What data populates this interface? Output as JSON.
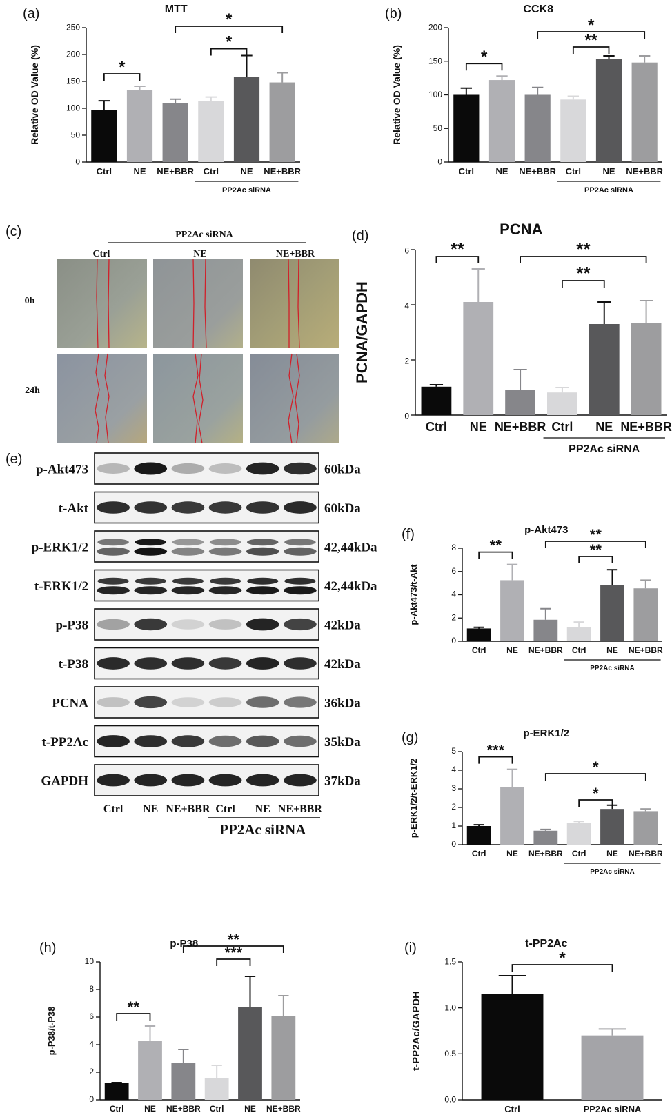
{
  "charts": {
    "a": {
      "panel_label": "(a)",
      "title": "MTT",
      "ylabel": "Relative OD Value (%)",
      "ylim": [
        0,
        250
      ],
      "yticks": [
        "0",
        "50",
        "100",
        "150",
        "200",
        "250"
      ],
      "categories": [
        "Ctrl",
        "NE",
        "NE+BBR",
        "Ctrl",
        "NE",
        "NE+BBR"
      ],
      "values": [
        97,
        134,
        109,
        113,
        158,
        148
      ],
      "errors": [
        17,
        7,
        8,
        8,
        40,
        18
      ],
      "colors": [
        "#0a0a0a",
        "#b0b0b4",
        "#86868a",
        "#d8d8da",
        "#58585a",
        "#9d9d9f"
      ],
      "group_label": "PP2Ac siRNA",
      "significance": [
        {
          "from": 0,
          "to": 1,
          "label": "*"
        },
        {
          "from": 3,
          "to": 4,
          "label": "*"
        },
        {
          "from": 2,
          "to": 5,
          "label": "*"
        }
      ]
    },
    "b": {
      "panel_label": "(b)",
      "title": "CCK8",
      "ylabel": "Relative OD Value (%)",
      "ylim": [
        0,
        200
      ],
      "yticks": [
        "0",
        "50",
        "100",
        "150",
        "200"
      ],
      "categories": [
        "Ctrl",
        "NE",
        "NE+BBR",
        "Ctrl",
        "NE",
        "NE+BBR"
      ],
      "values": [
        100,
        122,
        100,
        93,
        153,
        148
      ],
      "errors": [
        10,
        6,
        11,
        5,
        5,
        10
      ],
      "colors": [
        "#0a0a0a",
        "#b0b0b4",
        "#86868a",
        "#d8d8da",
        "#58585a",
        "#9d9d9f"
      ],
      "group_label": "PP2Ac siRNA",
      "significance": [
        {
          "from": 0,
          "to": 1,
          "label": "*"
        },
        {
          "from": 3,
          "to": 4,
          "label": "**"
        },
        {
          "from": 2,
          "to": 5,
          "label": "*"
        }
      ]
    },
    "d": {
      "panel_label": "(d)",
      "title": "PCNA",
      "ylabel": "PCNA/GAPDH",
      "ylim": [
        0,
        6
      ],
      "yticks": [
        "0",
        "2",
        "4",
        "6"
      ],
      "categories": [
        "Ctrl",
        "NE",
        "NE+BBR",
        "Ctrl",
        "NE",
        "NE+BBR"
      ],
      "values": [
        1.03,
        4.1,
        0.9,
        0.82,
        3.3,
        3.35
      ],
      "errors": [
        0.07,
        1.2,
        0.75,
        0.18,
        0.8,
        0.8
      ],
      "colors": [
        "#0a0a0a",
        "#b0b0b4",
        "#86868a",
        "#d8d8da",
        "#58585a",
        "#9d9d9f"
      ],
      "group_label": "PP2Ac siRNA",
      "significance": [
        {
          "from": 0,
          "to": 1,
          "label": "**"
        },
        {
          "from": 3,
          "to": 4,
          "label": "**"
        },
        {
          "from": 2,
          "to": 5,
          "label": "**"
        }
      ]
    },
    "f": {
      "panel_label": "(f)",
      "title": "p-Akt473",
      "ylabel": "p-Akt473/t-Akt",
      "ylim": [
        0,
        8
      ],
      "yticks": [
        "0",
        "2",
        "4",
        "6",
        "8"
      ],
      "categories": [
        "Ctrl",
        "NE",
        "NE+BBR",
        "Ctrl",
        "NE",
        "NE+BBR"
      ],
      "values": [
        1.1,
        5.25,
        1.85,
        1.2,
        4.85,
        4.55
      ],
      "errors": [
        0.1,
        1.35,
        0.95,
        0.45,
        1.3,
        0.7
      ],
      "colors": [
        "#0a0a0a",
        "#b0b0b4",
        "#86868a",
        "#d8d8da",
        "#58585a",
        "#9d9d9f"
      ],
      "group_label": "PP2Ac siRNA",
      "significance": [
        {
          "from": 0,
          "to": 1,
          "label": "**"
        },
        {
          "from": 3,
          "to": 4,
          "label": "**"
        },
        {
          "from": 2,
          "to": 5,
          "label": "**"
        }
      ]
    },
    "g": {
      "panel_label": "(g)",
      "title": "p-ERK1/2",
      "ylabel": "p-ERK1/2/t-ERK1/2",
      "ylim": [
        0,
        5
      ],
      "yticks": [
        "0",
        "1",
        "2",
        "3",
        "4",
        "5"
      ],
      "categories": [
        "Ctrl",
        "NE",
        "NE+BBR",
        "Ctrl",
        "NE",
        "NE+BBR"
      ],
      "values": [
        1.0,
        3.1,
        0.75,
        1.15,
        1.92,
        1.8
      ],
      "errors": [
        0.07,
        0.95,
        0.07,
        0.1,
        0.2,
        0.12
      ],
      "colors": [
        "#0a0a0a",
        "#b0b0b4",
        "#86868a",
        "#d8d8da",
        "#58585a",
        "#9d9d9f"
      ],
      "group_label": "PP2Ac siRNA",
      "significance": [
        {
          "from": 0,
          "to": 1,
          "label": "***"
        },
        {
          "from": 3,
          "to": 4,
          "label": "*"
        },
        {
          "from": 2,
          "to": 5,
          "label": "*"
        }
      ]
    },
    "h": {
      "panel_label": "(h)",
      "title": "p-P38",
      "ylabel": "p-P38/t-P38",
      "ylim": [
        0,
        10
      ],
      "yticks": [
        "0",
        "2",
        "4",
        "6",
        "8",
        "10"
      ],
      "categories": [
        "Ctrl",
        "NE",
        "NE+BBR",
        "Ctrl",
        "NE",
        "NE+BBR"
      ],
      "values": [
        1.2,
        4.3,
        2.7,
        1.55,
        6.7,
        6.1
      ],
      "errors": [
        0.05,
        1.05,
        0.95,
        0.95,
        2.25,
        1.45
      ],
      "colors": [
        "#0a0a0a",
        "#b0b0b4",
        "#86868a",
        "#d8d8da",
        "#58585a",
        "#9d9d9f"
      ],
      "group_label": "PP2Ac siRNA",
      "significance": [
        {
          "from": 0,
          "to": 1,
          "label": "**"
        },
        {
          "from": 3,
          "to": 4,
          "label": "***"
        },
        {
          "from": 2,
          "to": 5,
          "label": "**"
        }
      ]
    },
    "i": {
      "panel_label": "(i)",
      "title": "t-PP2Ac",
      "ylabel": "t-PP2Ac/GAPDH",
      "ylim": [
        0,
        1.5
      ],
      "yticks": [
        "0.0",
        "0.5",
        "1.0",
        "1.5"
      ],
      "categories": [
        "Ctrl",
        "PP2Ac siRNA"
      ],
      "values": [
        1.15,
        0.7
      ],
      "errors": [
        0.2,
        0.07
      ],
      "colors": [
        "#0a0a0a",
        "#a4a4a8"
      ],
      "group_label": "",
      "significance": [
        {
          "from": 0,
          "to": 1,
          "label": "*"
        }
      ]
    }
  },
  "wound": {
    "panel_label": "(c)",
    "group_label": "PP2Ac siRNA",
    "columns": [
      "Ctrl",
      "NE",
      "NE+BBR"
    ],
    "rows": [
      "0h",
      "24h"
    ]
  },
  "western": {
    "panel_label": "(e)",
    "proteins": [
      "p-Akt473",
      "t-Akt",
      "p-ERK1/2",
      "t-ERK1/2",
      "p-P38",
      "t-P38",
      "PCNA",
      "t-PP2Ac",
      "GAPDH"
    ],
    "sizes": [
      "60kDa",
      "60kDa",
      "42,44kDa",
      "42,44kDa",
      "42kDa",
      "42kDa",
      "36kDa",
      "35kDa",
      "37kDa"
    ],
    "lanes": [
      "Ctrl",
      "NE",
      "NE+BBR",
      "Ctrl",
      "NE",
      "NE+BBR"
    ],
    "group_label": "PP2Ac siRNA",
    "intensity": [
      [
        0.25,
        1.0,
        0.3,
        0.22,
        0.95,
        0.9
      ],
      [
        0.9,
        0.88,
        0.85,
        0.85,
        0.88,
        0.92
      ],
      [
        0.55,
        1.0,
        0.4,
        0.45,
        0.65,
        0.55
      ],
      [
        0.85,
        0.85,
        0.85,
        0.85,
        0.9,
        0.9
      ],
      [
        0.35,
        0.85,
        0.12,
        0.2,
        0.95,
        0.8
      ],
      [
        0.92,
        0.9,
        0.9,
        0.85,
        0.95,
        0.9
      ],
      [
        0.2,
        0.8,
        0.12,
        0.15,
        0.6,
        0.55
      ],
      [
        0.95,
        0.9,
        0.85,
        0.6,
        0.7,
        0.6
      ],
      [
        0.95,
        0.95,
        0.95,
        0.95,
        0.95,
        0.95
      ]
    ]
  }
}
